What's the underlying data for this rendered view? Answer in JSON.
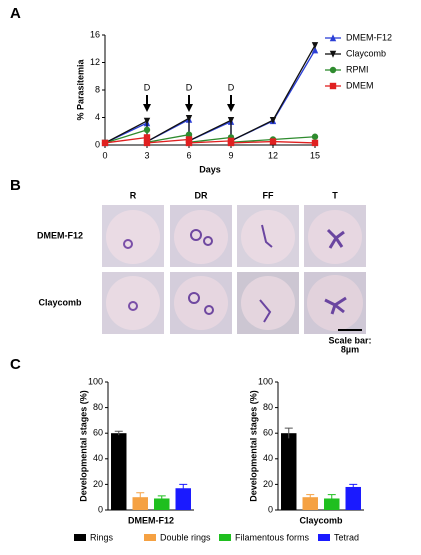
{
  "panel_labels": [
    "A",
    "B",
    "C"
  ],
  "chart_data": [
    {
      "type": "line",
      "xlabel": "Days",
      "ylabel": "% Parasitemia",
      "x": [
        0,
        3,
        3,
        6,
        6,
        9,
        9,
        12,
        15
      ],
      "xlim": [
        0,
        15
      ],
      "xticks": [
        0,
        3,
        6,
        9,
        12,
        15
      ],
      "ylim": [
        0,
        16
      ],
      "yticks": [
        0,
        4,
        8,
        12,
        16
      ],
      "legend": "right",
      "annotations": [
        {
          "x": 3,
          "text": "D"
        },
        {
          "x": 6,
          "text": "D"
        },
        {
          "x": 9,
          "text": "D"
        }
      ],
      "series": [
        {
          "name": "DMEM-F12",
          "color": "#2b3fd6",
          "marker": "triangle-up",
          "values": [
            0.3,
            3.2,
            0.5,
            3.7,
            0.6,
            3.4,
            0.6,
            3.5,
            13.8
          ]
        },
        {
          "name": "Claycomb",
          "color": "#111111",
          "marker": "triangle-down",
          "values": [
            0.3,
            3.5,
            0.5,
            3.9,
            0.6,
            3.6,
            0.6,
            3.6,
            14.5
          ]
        },
        {
          "name": "RPMI",
          "color": "#2e8b2e",
          "marker": "circle",
          "values": [
            0.3,
            2.2,
            0.4,
            1.5,
            0.4,
            1.1,
            0.4,
            0.8,
            1.2
          ]
        },
        {
          "name": "DMEM",
          "color": "#e02020",
          "marker": "square",
          "values": [
            0.3,
            1.1,
            0.3,
            0.8,
            0.3,
            0.6,
            0.3,
            0.5,
            0.3
          ]
        }
      ]
    },
    {
      "type": "bar",
      "xlabel": "DMEM-F12",
      "ylabel": "Developmental stages (%)",
      "categories": [
        "Rings",
        "Double rings",
        "Filamentous forms",
        "Tetrad"
      ],
      "colors": [
        "#000000",
        "#f5a142",
        "#1fbf1f",
        "#1a1aff"
      ],
      "values": [
        60,
        10,
        9,
        17
      ],
      "errors": [
        1.5,
        3.5,
        2,
        3
      ],
      "ylim": [
        0,
        100
      ],
      "yticks": [
        0,
        20,
        40,
        60,
        80,
        100
      ]
    },
    {
      "type": "bar",
      "xlabel": "Claycomb",
      "ylabel": "Developmental stages (%)",
      "categories": [
        "Rings",
        "Double rings",
        "Filamentous forms",
        "Tetrad"
      ],
      "colors": [
        "#000000",
        "#f5a142",
        "#1fbf1f",
        "#1a1aff"
      ],
      "values": [
        60,
        10,
        9,
        18
      ],
      "errors": [
        4,
        2,
        3,
        2
      ],
      "ylim": [
        0,
        100
      ],
      "yticks": [
        0,
        20,
        40,
        60,
        80,
        100
      ]
    }
  ],
  "micrographs": {
    "columns": [
      "R",
      "DR",
      "FF",
      "T"
    ],
    "rows": [
      "DMEM-F12",
      "Claycomb"
    ],
    "scale_bar": "Scale bar:",
    "scale_value": "8µm"
  }
}
